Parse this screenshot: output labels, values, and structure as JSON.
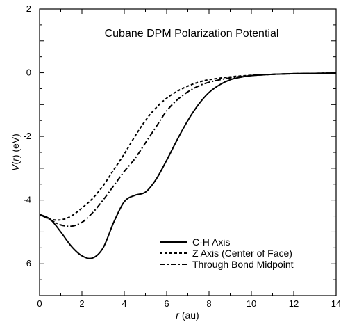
{
  "chart_data": {
    "type": "line",
    "title": "Cubane DPM Polarization Potential",
    "xlabel_var": "r",
    "xlabel_unit": " (au)",
    "ylabel_var_a": "V",
    "ylabel_paren_open": "(",
    "ylabel_var_b": "r",
    "ylabel_rest": ") (eV)",
    "xlim": [
      0,
      14
    ],
    "ylim": [
      -7,
      2
    ],
    "xticks": [
      0,
      2,
      4,
      6,
      8,
      10,
      12,
      14
    ],
    "yticks": [
      2,
      0,
      -2,
      -4,
      -6
    ],
    "grid": false,
    "legend_position": "lower-right",
    "series": [
      {
        "name": "C-H Axis",
        "dash": "solid",
        "x": [
          0,
          0.5,
          1.0,
          1.5,
          2.0,
          2.5,
          3.0,
          3.5,
          4.0,
          4.5,
          5.0,
          5.5,
          6.0,
          6.5,
          7.0,
          7.5,
          8.0,
          8.5,
          9.0,
          9.5,
          10.0,
          11.0,
          12.0,
          13.0,
          14.0
        ],
        "y": [
          -4.45,
          -4.6,
          -5.0,
          -5.45,
          -5.75,
          -5.82,
          -5.5,
          -4.7,
          -4.05,
          -3.85,
          -3.75,
          -3.35,
          -2.75,
          -2.1,
          -1.5,
          -1.0,
          -0.62,
          -0.38,
          -0.22,
          -0.14,
          -0.09,
          -0.05,
          -0.03,
          -0.02,
          -0.01
        ]
      },
      {
        "name": "Z Axis (Center of Face)",
        "dash": "dashed",
        "x": [
          0,
          0.5,
          1.0,
          1.5,
          2.0,
          2.5,
          3.0,
          3.5,
          4.0,
          4.5,
          5.0,
          5.5,
          6.0,
          6.5,
          7.0,
          7.5,
          8.0,
          9.0,
          10.0,
          11.0,
          12.0,
          13.0,
          14.0
        ],
        "y": [
          -4.45,
          -4.6,
          -4.62,
          -4.5,
          -4.25,
          -3.95,
          -3.55,
          -3.05,
          -2.55,
          -2.0,
          -1.5,
          -1.1,
          -0.8,
          -0.58,
          -0.42,
          -0.3,
          -0.22,
          -0.13,
          -0.08,
          -0.05,
          -0.03,
          -0.02,
          -0.01
        ]
      },
      {
        "name": "Through Bond Midpoint",
        "dash": "dashdot",
        "x": [
          0,
          0.5,
          1.0,
          1.5,
          2.0,
          2.5,
          3.0,
          3.5,
          4.0,
          4.5,
          5.0,
          5.5,
          6.0,
          6.5,
          7.0,
          7.5,
          8.0,
          9.0,
          10.0,
          11.0,
          12.0,
          13.0,
          14.0
        ],
        "y": [
          -4.45,
          -4.62,
          -4.78,
          -4.82,
          -4.7,
          -4.4,
          -4.0,
          -3.55,
          -3.1,
          -2.7,
          -2.2,
          -1.7,
          -1.2,
          -0.85,
          -0.6,
          -0.42,
          -0.3,
          -0.16,
          -0.09,
          -0.05,
          -0.03,
          -0.02,
          -0.01
        ]
      }
    ]
  }
}
